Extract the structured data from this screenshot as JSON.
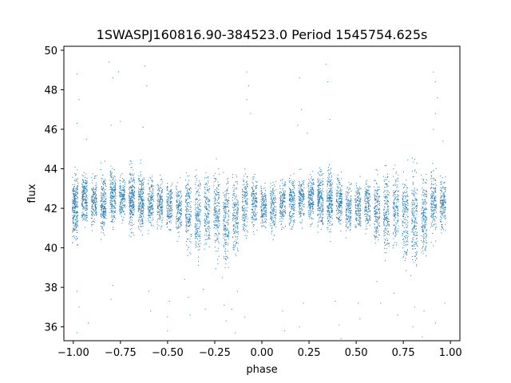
{
  "chart_data": {
    "type": "scatter",
    "title": "1SWASPJ160816.90-384523.0 Period 1545754.625s",
    "xlabel": "phase",
    "ylabel": "flux",
    "xlim": [
      -1.05,
      1.05
    ],
    "ylim": [
      35.3,
      50.2
    ],
    "xticks": [
      -1.0,
      -0.75,
      -0.5,
      -0.25,
      0.0,
      0.25,
      0.5,
      0.75,
      1.0
    ],
    "xtick_labels": [
      "−1.00",
      "−0.75",
      "−0.50",
      "−0.25",
      "0.00",
      "0.25",
      "0.50",
      "0.75",
      "1.00"
    ],
    "yticks": [
      36,
      38,
      40,
      42,
      44,
      46,
      48,
      50
    ],
    "ytick_labels": [
      "36",
      "38",
      "40",
      "42",
      "44",
      "46",
      "48",
      "50"
    ],
    "grid": false,
    "marker_color": "#1f77b4",
    "series": [
      {
        "clusters": [
          {
            "x": -0.99,
            "y_center": 42.0,
            "y_spread": 1.4,
            "n": 260
          },
          {
            "x": -0.94,
            "y_center": 42.5,
            "y_spread": 1.1,
            "n": 200
          },
          {
            "x": -0.89,
            "y_center": 42.4,
            "y_spread": 1.0,
            "n": 160
          },
          {
            "x": -0.84,
            "y_center": 42.2,
            "y_spread": 1.3,
            "n": 200
          },
          {
            "x": -0.79,
            "y_center": 42.6,
            "y_spread": 1.2,
            "n": 200
          },
          {
            "x": -0.74,
            "y_center": 42.5,
            "y_spread": 1.0,
            "n": 160
          },
          {
            "x": -0.69,
            "y_center": 42.5,
            "y_spread": 1.4,
            "n": 240
          },
          {
            "x": -0.64,
            "y_center": 42.4,
            "y_spread": 1.3,
            "n": 220
          },
          {
            "x": -0.59,
            "y_center": 42.3,
            "y_spread": 1.1,
            "n": 160
          },
          {
            "x": -0.54,
            "y_center": 42.2,
            "y_spread": 1.0,
            "n": 160
          },
          {
            "x": -0.49,
            "y_center": 42.1,
            "y_spread": 1.0,
            "n": 150
          },
          {
            "x": -0.44,
            "y_center": 42.0,
            "y_spread": 1.2,
            "n": 150
          },
          {
            "x": -0.39,
            "y_center": 41.8,
            "y_spread": 1.6,
            "n": 170
          },
          {
            "x": -0.34,
            "y_center": 41.7,
            "y_spread": 1.8,
            "n": 170
          },
          {
            "x": -0.29,
            "y_center": 41.9,
            "y_spread": 1.5,
            "n": 150
          },
          {
            "x": -0.24,
            "y_center": 41.8,
            "y_spread": 1.8,
            "n": 170
          },
          {
            "x": -0.19,
            "y_center": 41.4,
            "y_spread": 2.0,
            "n": 180
          },
          {
            "x": -0.14,
            "y_center": 41.6,
            "y_spread": 1.8,
            "n": 170
          },
          {
            "x": -0.09,
            "y_center": 42.3,
            "y_spread": 1.5,
            "n": 150
          },
          {
            "x": -0.04,
            "y_center": 42.3,
            "y_spread": 1.1,
            "n": 150
          },
          {
            "x": 0.01,
            "y_center": 42.1,
            "y_spread": 1.0,
            "n": 150
          },
          {
            "x": 0.06,
            "y_center": 42.0,
            "y_spread": 1.1,
            "n": 150
          },
          {
            "x": 0.11,
            "y_center": 42.2,
            "y_spread": 1.0,
            "n": 150
          },
          {
            "x": 0.16,
            "y_center": 42.3,
            "y_spread": 1.1,
            "n": 160
          },
          {
            "x": 0.21,
            "y_center": 42.5,
            "y_spread": 1.0,
            "n": 160
          },
          {
            "x": 0.26,
            "y_center": 42.5,
            "y_spread": 1.1,
            "n": 180
          },
          {
            "x": 0.31,
            "y_center": 42.5,
            "y_spread": 1.3,
            "n": 220
          },
          {
            "x": 0.36,
            "y_center": 42.5,
            "y_spread": 1.3,
            "n": 220
          },
          {
            "x": 0.41,
            "y_center": 42.3,
            "y_spread": 1.1,
            "n": 170
          },
          {
            "x": 0.46,
            "y_center": 42.0,
            "y_spread": 1.0,
            "n": 150
          },
          {
            "x": 0.51,
            "y_center": 42.1,
            "y_spread": 1.0,
            "n": 150
          },
          {
            "x": 0.56,
            "y_center": 42.2,
            "y_spread": 1.0,
            "n": 150
          },
          {
            "x": 0.61,
            "y_center": 41.9,
            "y_spread": 1.5,
            "n": 170
          },
          {
            "x": 0.66,
            "y_center": 41.8,
            "y_spread": 1.8,
            "n": 170
          },
          {
            "x": 0.71,
            "y_center": 41.9,
            "y_spread": 1.5,
            "n": 150
          },
          {
            "x": 0.76,
            "y_center": 41.6,
            "y_spread": 1.8,
            "n": 170
          },
          {
            "x": 0.81,
            "y_center": 41.5,
            "y_spread": 2.0,
            "n": 180
          },
          {
            "x": 0.86,
            "y_center": 41.6,
            "y_spread": 1.8,
            "n": 170
          },
          {
            "x": 0.91,
            "y_center": 42.4,
            "y_spread": 1.5,
            "n": 160
          },
          {
            "x": 0.96,
            "y_center": 42.3,
            "y_spread": 1.1,
            "n": 160
          }
        ],
        "outliers": [
          {
            "x": -0.98,
            "y": 48.8
          },
          {
            "x": -0.98,
            "y": 46.3
          },
          {
            "x": -0.97,
            "y": 47.5
          },
          {
            "x": -0.98,
            "y": 37.8
          },
          {
            "x": -0.97,
            "y": 37.0
          },
          {
            "x": -0.98,
            "y": 35.7
          },
          {
            "x": -0.93,
            "y": 45.5
          },
          {
            "x": -0.92,
            "y": 36.2
          },
          {
            "x": -0.81,
            "y": 49.4
          },
          {
            "x": -0.79,
            "y": 48.6
          },
          {
            "x": -0.8,
            "y": 46.2
          },
          {
            "x": -0.79,
            "y": 38.1
          },
          {
            "x": -0.8,
            "y": 37.4
          },
          {
            "x": -0.76,
            "y": 48.9
          },
          {
            "x": -0.75,
            "y": 46.4
          },
          {
            "x": -0.63,
            "y": 46.1
          },
          {
            "x": -0.62,
            "y": 49.2
          },
          {
            "x": -0.61,
            "y": 48.2
          },
          {
            "x": -0.6,
            "y": 37.8
          },
          {
            "x": -0.59,
            "y": 36.8
          },
          {
            "x": -0.5,
            "y": 36.5
          },
          {
            "x": -0.49,
            "y": 37.3
          },
          {
            "x": -0.5,
            "y": 35.8
          },
          {
            "x": -0.41,
            "y": 38.4
          },
          {
            "x": -0.39,
            "y": 37.5
          },
          {
            "x": -0.38,
            "y": 36.6
          },
          {
            "x": -0.31,
            "y": 37.9
          },
          {
            "x": -0.3,
            "y": 36.9
          },
          {
            "x": -0.21,
            "y": 38.5
          },
          {
            "x": -0.2,
            "y": 37.1
          },
          {
            "x": -0.19,
            "y": 36.3
          },
          {
            "x": -0.16,
            "y": 36.9
          },
          {
            "x": -0.14,
            "y": 35.7
          },
          {
            "x": -0.13,
            "y": 37.8
          },
          {
            "x": -0.08,
            "y": 48.9
          },
          {
            "x": -0.07,
            "y": 48.2
          },
          {
            "x": -0.08,
            "y": 47.5
          },
          {
            "x": -0.06,
            "y": 46.8
          },
          {
            "x": -0.09,
            "y": 36.5
          },
          {
            "x": 0.11,
            "y": 36.8
          },
          {
            "x": 0.12,
            "y": 35.8
          },
          {
            "x": 0.2,
            "y": 48.6
          },
          {
            "x": 0.21,
            "y": 47.0
          },
          {
            "x": 0.19,
            "y": 46.2
          },
          {
            "x": 0.22,
            "y": 37.2
          },
          {
            "x": 0.2,
            "y": 36.0
          },
          {
            "x": 0.24,
            "y": 45.8
          },
          {
            "x": 0.34,
            "y": 49.3
          },
          {
            "x": 0.35,
            "y": 48.4
          },
          {
            "x": 0.36,
            "y": 46.5
          },
          {
            "x": 0.39,
            "y": 37.3
          },
          {
            "x": 0.41,
            "y": 36.1
          },
          {
            "x": 0.42,
            "y": 35.4
          },
          {
            "x": 0.51,
            "y": 37.2
          },
          {
            "x": 0.52,
            "y": 36.4
          },
          {
            "x": 0.61,
            "y": 38.3
          },
          {
            "x": 0.63,
            "y": 37.2
          },
          {
            "x": 0.7,
            "y": 37.7
          },
          {
            "x": 0.72,
            "y": 36.6
          },
          {
            "x": 0.79,
            "y": 38.6
          },
          {
            "x": 0.81,
            "y": 37.0
          },
          {
            "x": 0.8,
            "y": 36.0
          },
          {
            "x": 0.86,
            "y": 36.8
          },
          {
            "x": 0.85,
            "y": 35.5
          },
          {
            "x": 0.91,
            "y": 48.9
          },
          {
            "x": 0.92,
            "y": 48.4
          },
          {
            "x": 0.93,
            "y": 47.6
          },
          {
            "x": 0.92,
            "y": 46.8
          },
          {
            "x": 0.91,
            "y": 46.0
          },
          {
            "x": 0.92,
            "y": 36.2
          },
          {
            "x": 0.96,
            "y": 45.4
          },
          {
            "x": 0.97,
            "y": 37.2
          }
        ]
      }
    ]
  }
}
